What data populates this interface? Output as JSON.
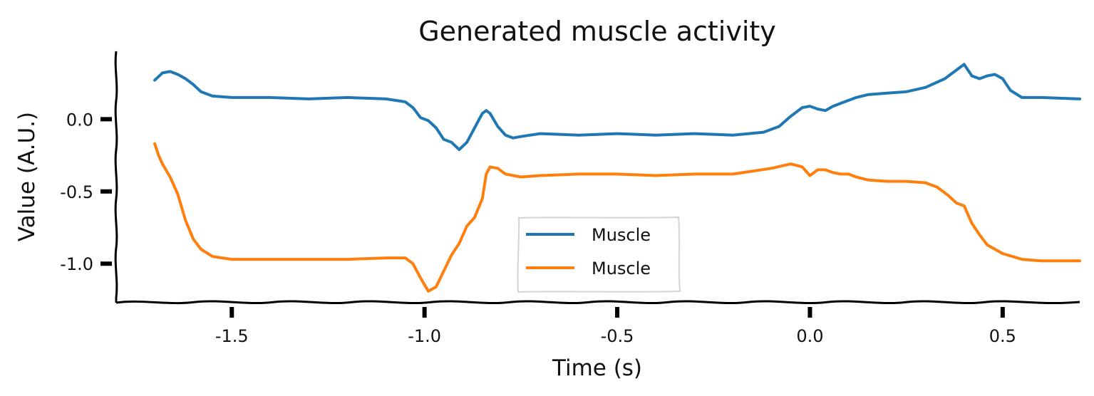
{
  "chart_data": {
    "type": "line",
    "title": "Generated muscle activity",
    "xlabel": "Time (s)",
    "ylabel": "Value (A.U.)",
    "xlim": [
      -1.8,
      0.7
    ],
    "ylim": [
      -1.27,
      0.47
    ],
    "xticks": [
      -1.5,
      -1.0,
      -0.5,
      0.0,
      0.5
    ],
    "xtick_labels": [
      "-1.5",
      "-1.0",
      "-0.5",
      "0.0",
      "0.5"
    ],
    "yticks": [
      0.0,
      -0.5,
      -1.0
    ],
    "ytick_labels": [
      "0.0",
      "-0.5",
      "-1.0"
    ],
    "grid": false,
    "legend_position": "lower-center",
    "series": [
      {
        "name": "Muscle",
        "color": "#1f77b4",
        "x": [
          -1.7,
          -1.68,
          -1.66,
          -1.64,
          -1.62,
          -1.6,
          -1.58,
          -1.55,
          -1.5,
          -1.4,
          -1.3,
          -1.2,
          -1.1,
          -1.05,
          -1.03,
          -1.01,
          -0.99,
          -0.97,
          -0.95,
          -0.93,
          -0.91,
          -0.89,
          -0.87,
          -0.85,
          -0.84,
          -0.83,
          -0.81,
          -0.79,
          -0.77,
          -0.75,
          -0.7,
          -0.6,
          -0.5,
          -0.4,
          -0.3,
          -0.2,
          -0.12,
          -0.08,
          -0.05,
          -0.02,
          0.0,
          0.02,
          0.04,
          0.06,
          0.08,
          0.12,
          0.15,
          0.2,
          0.25,
          0.3,
          0.35,
          0.38,
          0.4,
          0.42,
          0.44,
          0.46,
          0.48,
          0.5,
          0.52,
          0.55,
          0.6,
          0.7
        ],
        "y": [
          0.27,
          0.32,
          0.33,
          0.31,
          0.28,
          0.24,
          0.19,
          0.16,
          0.15,
          0.15,
          0.14,
          0.15,
          0.14,
          0.12,
          0.08,
          0.01,
          -0.01,
          -0.06,
          -0.14,
          -0.16,
          -0.21,
          -0.16,
          -0.06,
          0.04,
          0.06,
          0.04,
          -0.05,
          -0.11,
          -0.13,
          -0.12,
          -0.1,
          -0.11,
          -0.1,
          -0.11,
          -0.1,
          -0.11,
          -0.09,
          -0.05,
          0.02,
          0.08,
          0.09,
          0.07,
          0.06,
          0.09,
          0.11,
          0.15,
          0.17,
          0.18,
          0.19,
          0.22,
          0.28,
          0.34,
          0.38,
          0.3,
          0.28,
          0.3,
          0.31,
          0.28,
          0.2,
          0.15,
          0.15,
          0.14
        ]
      },
      {
        "name": "Muscle",
        "color": "#ff7f0e",
        "x": [
          -1.7,
          -1.69,
          -1.68,
          -1.66,
          -1.64,
          -1.62,
          -1.6,
          -1.58,
          -1.55,
          -1.5,
          -1.4,
          -1.3,
          -1.2,
          -1.1,
          -1.05,
          -1.03,
          -1.01,
          -0.99,
          -0.97,
          -0.95,
          -0.93,
          -0.91,
          -0.89,
          -0.87,
          -0.85,
          -0.84,
          -0.83,
          -0.81,
          -0.79,
          -0.75,
          -0.7,
          -0.6,
          -0.5,
          -0.4,
          -0.3,
          -0.2,
          -0.1,
          -0.05,
          -0.02,
          0.0,
          0.02,
          0.04,
          0.06,
          0.08,
          0.1,
          0.12,
          0.15,
          0.2,
          0.25,
          0.3,
          0.33,
          0.36,
          0.38,
          0.4,
          0.42,
          0.44,
          0.46,
          0.48,
          0.5,
          0.55,
          0.6,
          0.7
        ],
        "y": [
          -0.17,
          -0.25,
          -0.31,
          -0.4,
          -0.52,
          -0.7,
          -0.83,
          -0.9,
          -0.95,
          -0.97,
          -0.97,
          -0.97,
          -0.97,
          -0.96,
          -0.96,
          -1.0,
          -1.1,
          -1.19,
          -1.16,
          -1.05,
          -0.94,
          -0.86,
          -0.74,
          -0.68,
          -0.55,
          -0.38,
          -0.33,
          -0.34,
          -0.38,
          -0.4,
          -0.39,
          -0.38,
          -0.38,
          -0.39,
          -0.38,
          -0.38,
          -0.34,
          -0.31,
          -0.33,
          -0.39,
          -0.35,
          -0.35,
          -0.37,
          -0.38,
          -0.38,
          -0.4,
          -0.42,
          -0.43,
          -0.43,
          -0.44,
          -0.47,
          -0.53,
          -0.58,
          -0.6,
          -0.72,
          -0.8,
          -0.87,
          -0.9,
          -0.93,
          -0.97,
          -0.98,
          -0.98
        ]
      }
    ]
  }
}
